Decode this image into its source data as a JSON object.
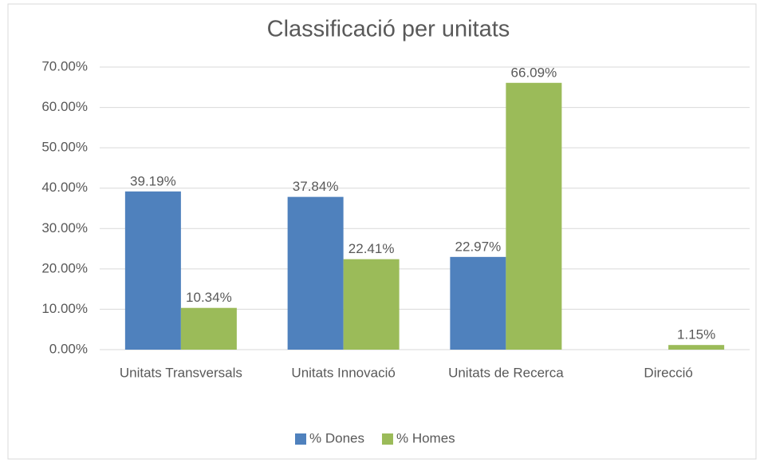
{
  "chart_data": {
    "type": "bar",
    "title": "Classificació per unitats",
    "categories": [
      "Unitats Transversals",
      "Unitats Innovació",
      "Unitats de Recerca",
      "Direcció"
    ],
    "series": [
      {
        "name": "% Dones",
        "color": "#4f81bd",
        "values": [
          39.19,
          37.84,
          22.97,
          null
        ],
        "value_labels": [
          "39.19%",
          "37.84%",
          "22.97%",
          null
        ]
      },
      {
        "name": "% Homes",
        "color": "#9bbb59",
        "values": [
          10.34,
          22.41,
          66.09,
          1.15
        ],
        "value_labels": [
          "10.34%",
          "22.41%",
          "66.09%",
          "1.15%"
        ]
      }
    ],
    "ylim": [
      0,
      70
    ],
    "yticks": [
      {
        "value": 0,
        "label": "0.00%"
      },
      {
        "value": 10,
        "label": "10.00%"
      },
      {
        "value": 20,
        "label": "20.00%"
      },
      {
        "value": 30,
        "label": "30.00%"
      },
      {
        "value": 40,
        "label": "40.00%"
      },
      {
        "value": 50,
        "label": "50.00%"
      },
      {
        "value": 60,
        "label": "60.00%"
      },
      {
        "value": 70,
        "label": "70.00%"
      }
    ],
    "grid": true,
    "legend": "bottom"
  }
}
